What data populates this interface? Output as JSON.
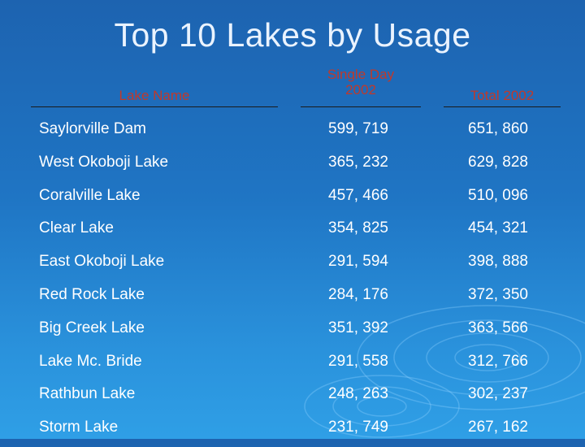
{
  "slide": {
    "title": "Top 10 Lakes by Usage"
  },
  "table": {
    "headers": {
      "name": "Lake Name",
      "single_line1": "Single Day",
      "single_line2": "2002",
      "total": "Total 2002"
    },
    "rows": [
      {
        "name": "Saylorville Dam",
        "single_day": "599, 719",
        "total": "651, 860"
      },
      {
        "name": "West Okoboji Lake",
        "single_day": "365, 232",
        "total": "629, 828"
      },
      {
        "name": "Coralville Lake",
        "single_day": "457, 466",
        "total": "510, 096"
      },
      {
        "name": "Clear Lake",
        "single_day": "354, 825",
        "total": "454, 321"
      },
      {
        "name": "East Okoboji Lake",
        "single_day": "291, 594",
        "total": "398, 888"
      },
      {
        "name": "Red Rock Lake",
        "single_day": "284, 176",
        "total": "372, 350"
      },
      {
        "name": "Big Creek Lake",
        "single_day": "351, 392",
        "total": "363, 566"
      },
      {
        "name": "Lake Mc. Bride",
        "single_day": "291, 558",
        "total": "312, 766"
      },
      {
        "name": "Rathbun Lake",
        "single_day": "248, 263",
        "total": "302, 237"
      },
      {
        "name": "Storm Lake",
        "single_day": "231, 749",
        "total": "267, 162"
      }
    ]
  },
  "colors": {
    "background": "#1f75c4",
    "title": "#eaf3ff",
    "header_text": "#c0392b",
    "body_text": "#ffffff"
  }
}
